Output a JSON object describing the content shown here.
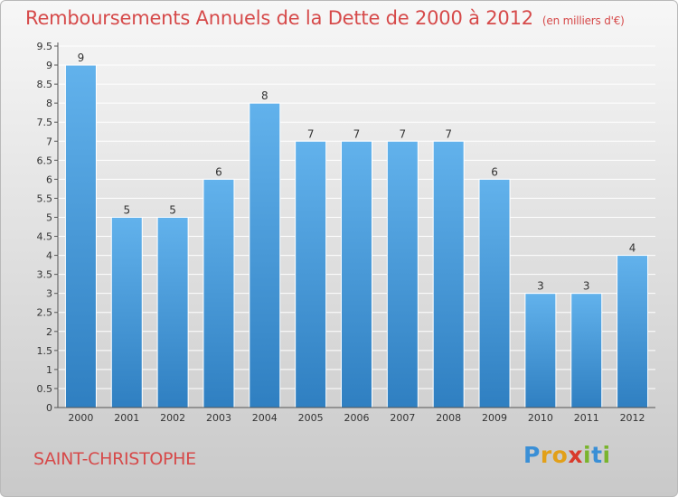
{
  "title": "Remboursements Annuels de la Dette de 2000 à 2012",
  "unit_label": "(en milliers d'€)",
  "city": "SAINT-CHRISTOPHE",
  "logo": {
    "letters": [
      {
        "ch": "P",
        "color": "#3a8fd6"
      },
      {
        "ch": "r",
        "color": "#e2a019"
      },
      {
        "ch": "o",
        "color": "#e2a019"
      },
      {
        "ch": "x",
        "color": "#d93a2b"
      },
      {
        "ch": "i",
        "color": "#7ab42d"
      },
      {
        "ch": "t",
        "color": "#3a8fd6"
      },
      {
        "ch": "i",
        "color": "#7ab42d"
      }
    ]
  },
  "colors": {
    "bar_top": "#62b2ec",
    "bar_bottom": "#2f7fc1",
    "accent": "#d64a4a"
  },
  "chart_data": {
    "type": "bar",
    "title": "Remboursements Annuels de la Dette de 2000 à 2012",
    "categories": [
      "2000",
      "2001",
      "2002",
      "2003",
      "2004",
      "2005",
      "2006",
      "2007",
      "2008",
      "2009",
      "2010",
      "2011",
      "2012"
    ],
    "values": [
      9,
      5,
      5,
      6,
      8,
      7,
      7,
      7,
      7,
      6,
      3,
      3,
      4
    ],
    "data_labels": [
      "9",
      "5",
      "5",
      "6",
      "8",
      "7",
      "7",
      "7",
      "7",
      "6",
      "3",
      "3",
      "4"
    ],
    "ylim": [
      0,
      9.5
    ],
    "yticks": [
      "0",
      "0.5",
      "1",
      "1.5",
      "2",
      "2.5",
      "3",
      "3.5",
      "4",
      "4.5",
      "5",
      "5.5",
      "6",
      "6.5",
      "7",
      "7.5",
      "8",
      "8.5",
      "9",
      "9.5"
    ],
    "grid": true
  }
}
